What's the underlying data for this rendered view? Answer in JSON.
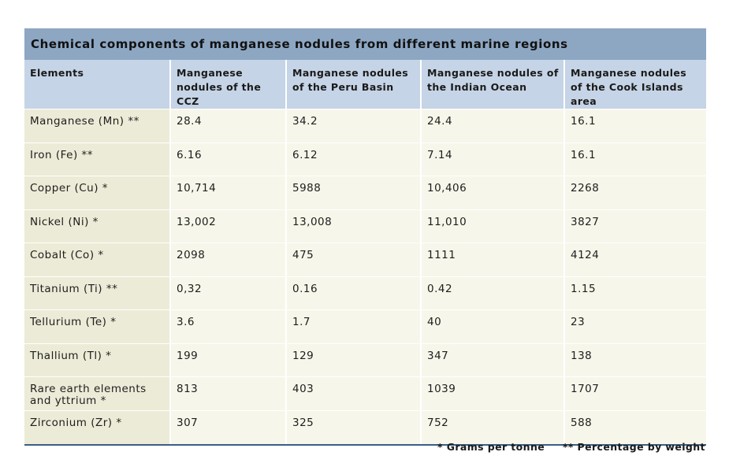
{
  "title": "Chemical components of manganese nodules from different marine regions",
  "headers": [
    "Elements",
    "Manganese nodules of the CCZ",
    "Manganese nodules of the Peru Basin",
    "Manganese nodules of the Indian Ocean",
    "Manganese nodules of the Cook Islands area"
  ],
  "rows": [
    [
      "Manganese (Mn) **",
      "28.4",
      "34.2",
      "24.4",
      "16.1"
    ],
    [
      "Iron (Fe) **",
      "6.16",
      "6.12",
      "7.14",
      "16.1"
    ],
    [
      "Copper (Cu) *",
      "10,714",
      "5988",
      "10,406",
      "2268"
    ],
    [
      "Nickel (Ni) *",
      "13,002",
      "13,008",
      "11,010",
      "3827"
    ],
    [
      "Cobalt (Co) *",
      "2098",
      "475",
      "1111",
      "4124"
    ],
    [
      "Titanium (Ti) **",
      "0,32",
      "0.16",
      "0.42",
      "1.15"
    ],
    [
      "Tellurium (Te) *",
      "3.6",
      "1.7",
      "40",
      "23"
    ],
    [
      "Thallium (Tl) *",
      "199",
      "129",
      "347",
      "138"
    ],
    [
      "Rare earth elements and yttrium *",
      "813",
      "403",
      "1039",
      "1707"
    ],
    [
      "Zirconium (Zr) *",
      "307",
      "325",
      "752",
      "588"
    ]
  ],
  "footnotes": {
    "single": "* Grams per tonne",
    "double": "** Percentage by weight"
  }
}
